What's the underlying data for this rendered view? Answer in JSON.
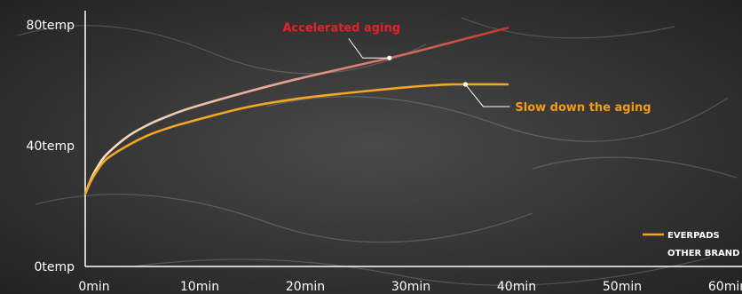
{
  "chart_data": {
    "type": "line",
    "title": "",
    "xlabel": "",
    "ylabel": "",
    "x_tick_labels": [
      "0min",
      "10min",
      "20min",
      "30min",
      "40min",
      "50min",
      "60min"
    ],
    "y_tick_labels": [
      "0temp",
      "40temp",
      "80temp"
    ],
    "xlim": [
      0,
      60
    ],
    "ylim": [
      0,
      80
    ],
    "series": [
      {
        "name": "EVERPADS",
        "color": "#f5a623",
        "x": [
          0,
          0.5,
          1,
          2,
          4,
          6,
          8,
          10,
          15,
          20,
          25,
          30,
          33,
          35,
          40
        ],
        "y": [
          24,
          28,
          31,
          35.5,
          40,
          43.5,
          46,
          48,
          52.5,
          55.5,
          57.5,
          59.2,
          60,
          60.3,
          60.3
        ]
      },
      {
        "name": "OTHER BRAND",
        "color": "#d9513e",
        "x": [
          0,
          0.5,
          1,
          2,
          4,
          6,
          8,
          10,
          15,
          20,
          25,
          30,
          35,
          40
        ],
        "y": [
          24,
          28.5,
          32,
          37,
          43,
          47,
          50,
          52.5,
          57.5,
          62,
          66,
          70,
          74.5,
          79
        ]
      }
    ],
    "annotations": [
      {
        "text": "Accelerated aging",
        "color": "#e8202a",
        "series": "OTHER BRAND",
        "at_x": 28.8
      },
      {
        "text": "Slow down the aging",
        "color": "#f59a12",
        "series": "EVERPADS",
        "at_x": 36
      }
    ],
    "legend": {
      "position": "bottom-right",
      "items": [
        {
          "label": "EVERPADS",
          "color": "#f5a623"
        },
        {
          "label": "OTHER BRAND",
          "color": "#d9513e"
        }
      ]
    },
    "grid": false,
    "axis_color": "#ffffff",
    "background": "dark textured"
  }
}
